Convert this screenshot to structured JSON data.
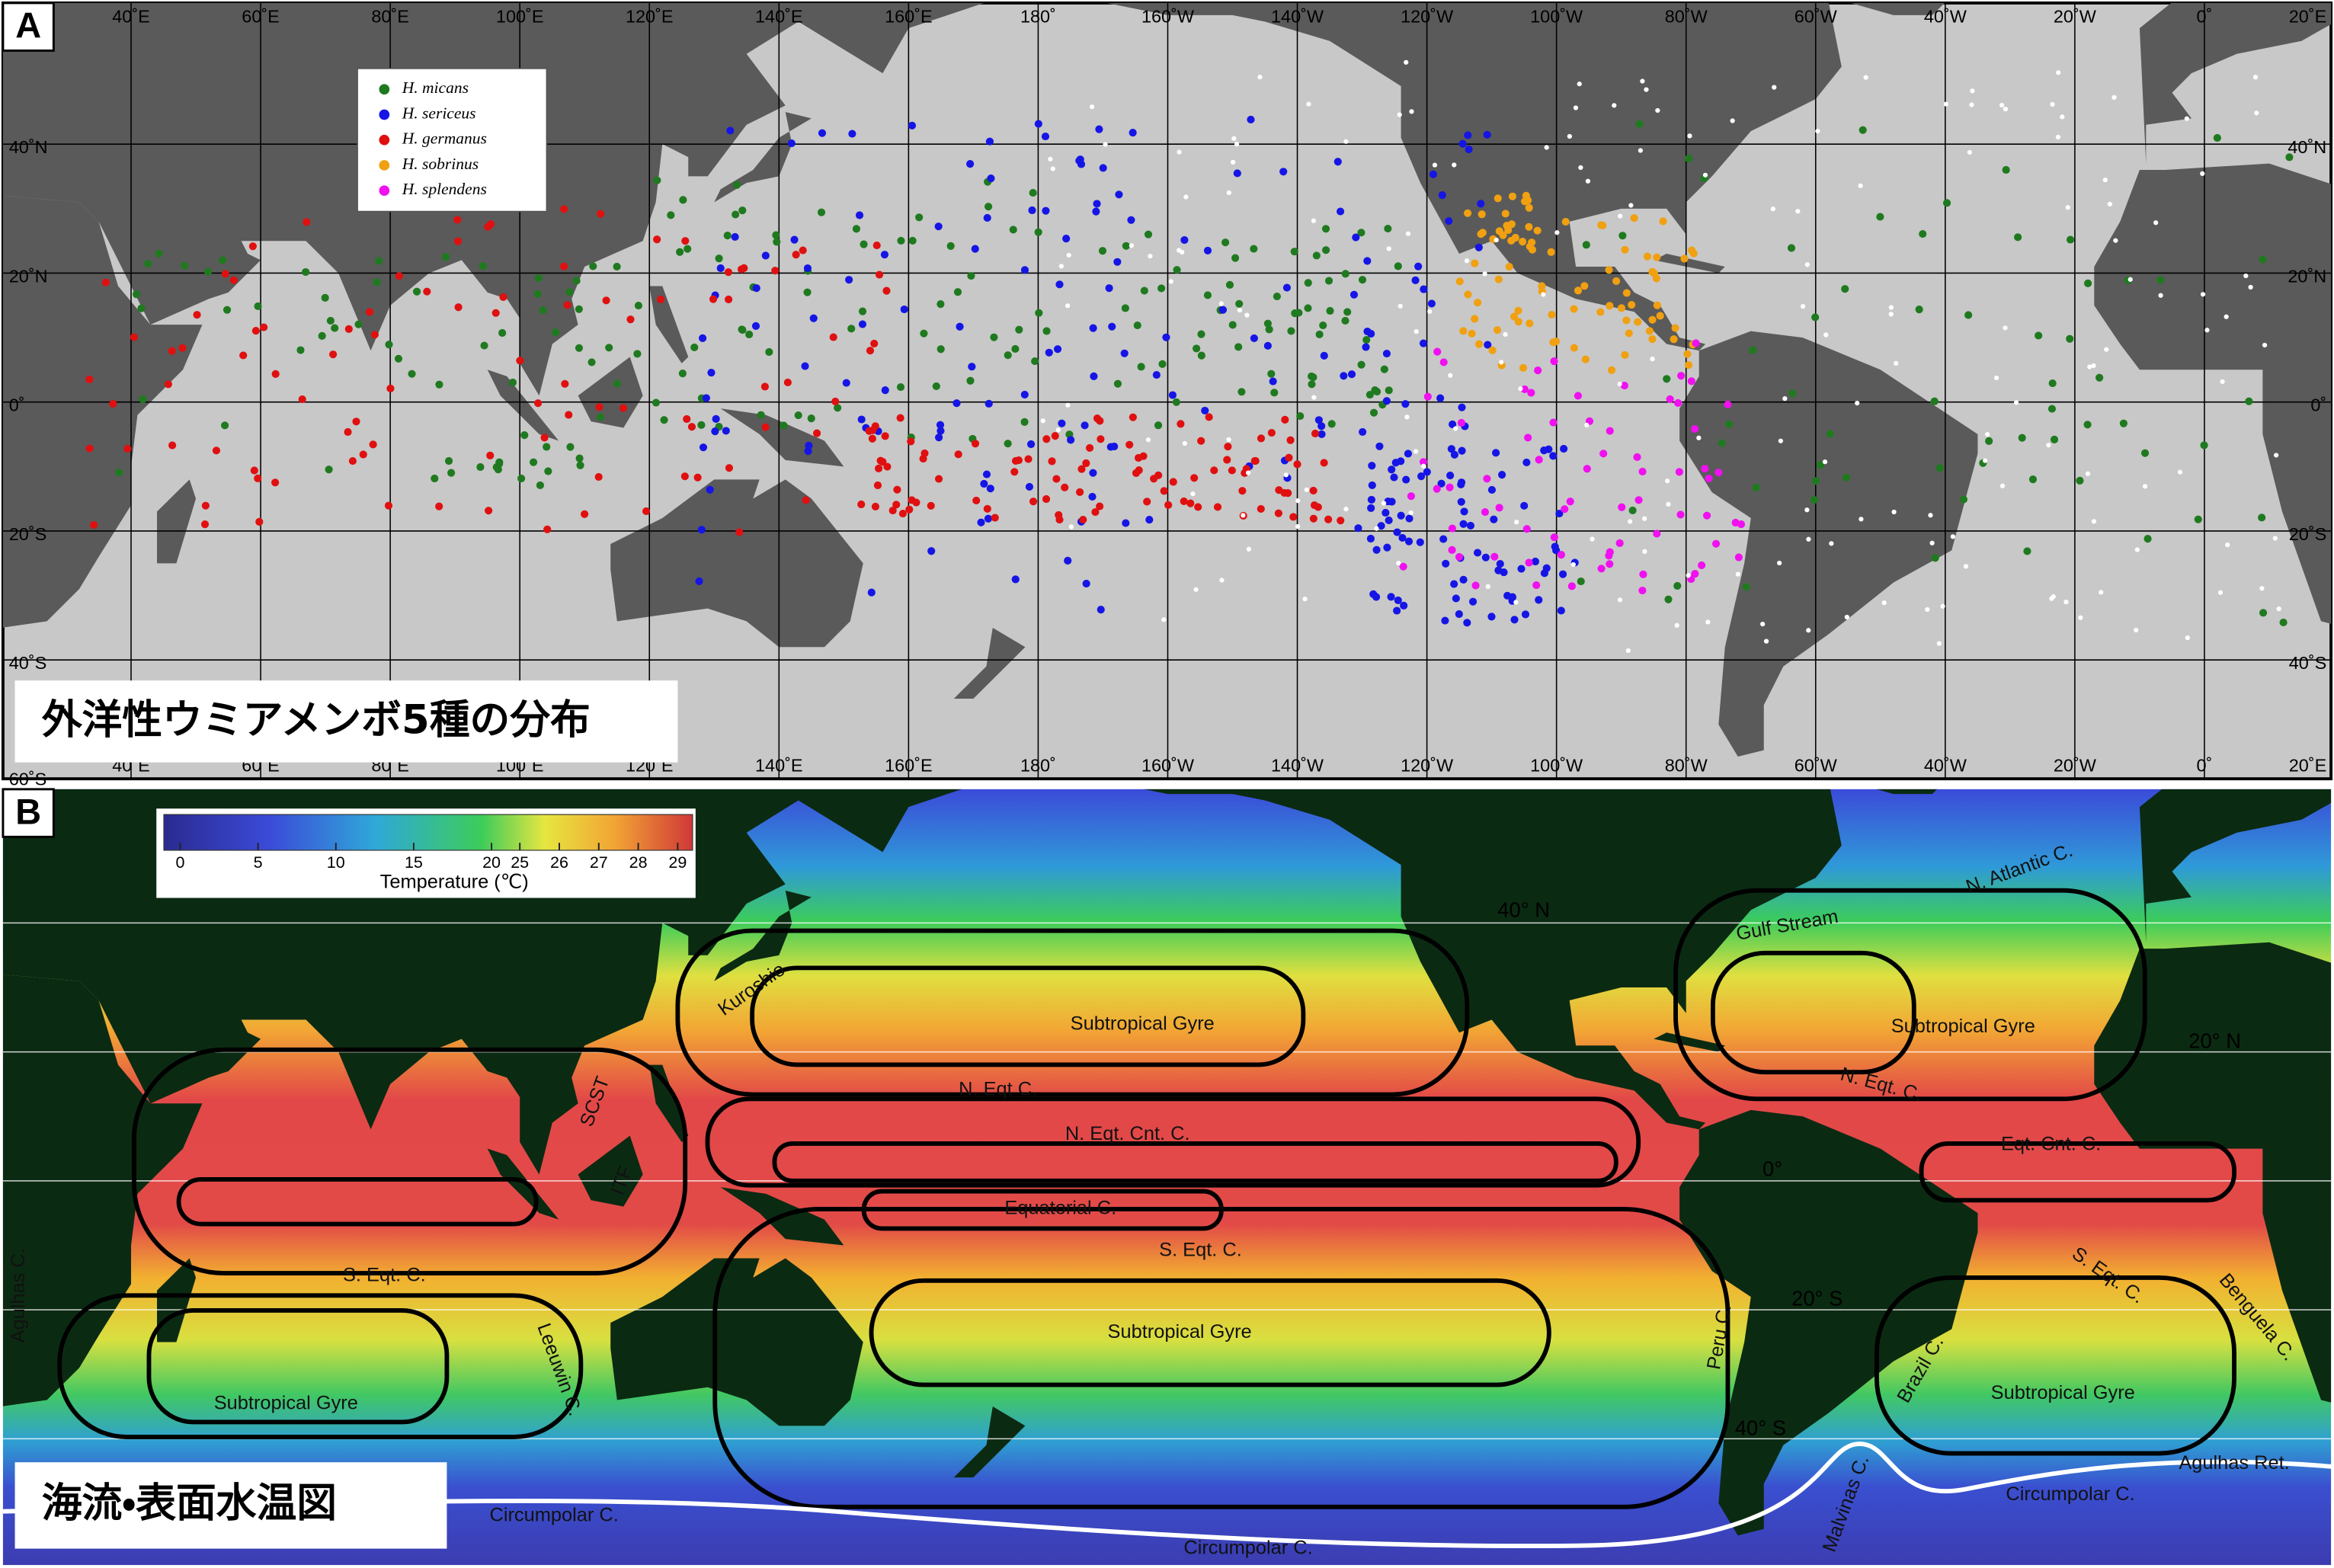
{
  "panel_a": {
    "label": "A",
    "title": "外洋性ウミアメンボ5種の分布",
    "legend": [
      {
        "name": "H. micans",
        "color": "#1f7a1f"
      },
      {
        "name": "H. sericeus",
        "color": "#1515e6"
      },
      {
        "name": "H. germanus",
        "color": "#e01010"
      },
      {
        "name": "H. sobrinus",
        "color": "#f0a010"
      },
      {
        "name": "H. splendens",
        "color": "#f010f0"
      }
    ],
    "longitude_labels": [
      "40˚E",
      "60˚E",
      "80˚E",
      "100˚E",
      "120˚E",
      "140˚E",
      "160˚E",
      "180˚",
      "160˚W",
      "140˚W",
      "120˚W",
      "100˚W",
      "80˚W",
      "60˚W",
      "40˚W",
      "20˚W",
      "0˚",
      "20˚E"
    ],
    "latitude_labels_left": [
      "40˚N",
      "20˚N",
      "0˚",
      "20˚S",
      "40˚S",
      "60˚S"
    ],
    "latitude_labels_right": [
      "40˚N",
      "20˚N",
      "0˚",
      "20˚S",
      "40˚S"
    ]
  },
  "panel_b": {
    "label": "B",
    "title": "海流・表面水温図",
    "colorbar": {
      "title": "Temperature (℃)",
      "ticks": [
        0,
        5,
        10,
        15,
        20,
        25,
        26,
        27,
        28,
        29
      ]
    },
    "latitude_labels": [
      "40° N",
      "20° N",
      "0°",
      "20° S",
      "40° S"
    ],
    "current_labels": [
      "Kuroshio",
      "Subtropical Gyre",
      "N. Eqt C.",
      "N. Eqt. Cnt. C.",
      "Equatorial C.",
      "S. Eqt. C.",
      "Subtropical Gyre",
      "SCST",
      "ITF",
      "S. Eqt. C.",
      "Subtropical Gyre",
      "Leeuwin C.",
      "Agulhas C.",
      "Peru C.",
      "Circumpolar C.",
      "Circumpolar C.",
      "Malvinas C.",
      "Circumpolar C.",
      "Agulhas Ret.",
      "Subtropical Gyre",
      "Brazil C.",
      "Benguela C.",
      "S. Eqt. C.",
      "Eqt. Cnt. C.",
      "N. Eqt. C.",
      "Subtropical Gyre",
      "Gulf Stream",
      "N. Atlantic C."
    ]
  }
}
